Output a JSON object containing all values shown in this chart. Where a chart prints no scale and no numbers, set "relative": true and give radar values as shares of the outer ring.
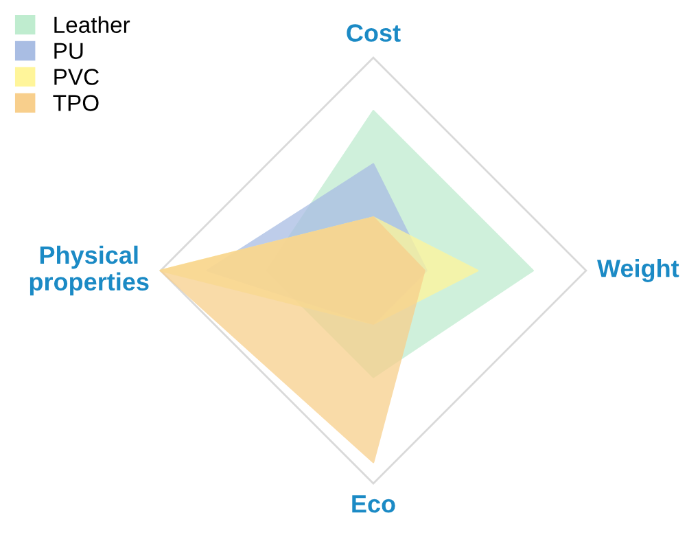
{
  "chart_data": {
    "type": "radar",
    "relative": true,
    "categories": [
      "Cost",
      "Weight",
      "Eco",
      "Physical\nproperties"
    ],
    "legend": "top left",
    "grid": false,
    "series": [
      {
        "name": "Leather",
        "color": "#bfeccf",
        "values": [
          0.75,
          0.75,
          0.5,
          0.5
        ]
      },
      {
        "name": "PU",
        "color": "#a9bde3",
        "values": [
          0.5,
          0.25,
          0.25,
          0.78
        ]
      },
      {
        "name": "PVC",
        "color": "#fff59a",
        "values": [
          0.25,
          0.49,
          0.25,
          1.0
        ]
      },
      {
        "name": "TPO",
        "color": "#f8cf8c",
        "values": [
          0.25,
          0.24,
          0.9,
          1.0
        ]
      }
    ]
  }
}
